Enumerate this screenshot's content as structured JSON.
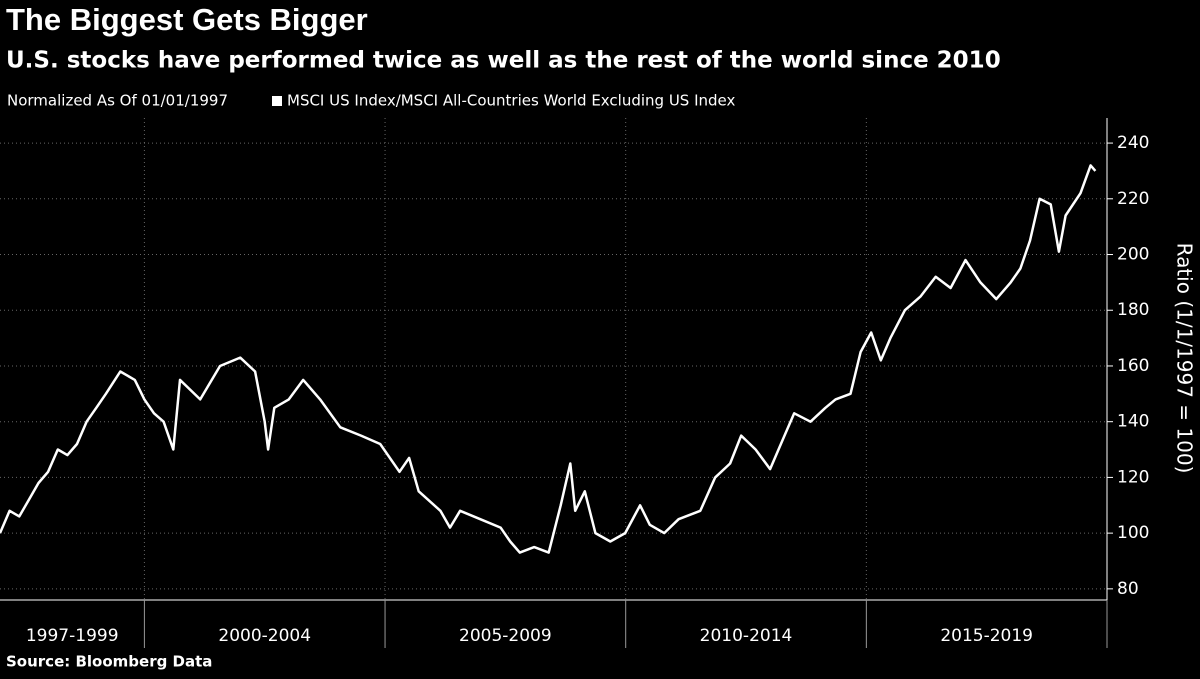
{
  "chart_data": {
    "type": "line",
    "title": "The Biggest Gets Bigger",
    "subtitle": "U.S. stocks have performed twice as well as the rest of the world since 2010",
    "note": "Normalized As Of 01/01/1997",
    "y_label": "Ratio (1/1/1997 = 100)",
    "source": "Source: Bloomberg Data",
    "xlim": [
      1997,
      2020
    ],
    "x_periods": [
      {
        "start": 1997,
        "end": 2000,
        "label": "1997-1999"
      },
      {
        "start": 2000,
        "end": 2005,
        "label": "2000-2004"
      },
      {
        "start": 2005,
        "end": 2010,
        "label": "2005-2009"
      },
      {
        "start": 2010,
        "end": 2015,
        "label": "2010-2014"
      },
      {
        "start": 2015,
        "end": 2020,
        "label": "2015-2019"
      }
    ],
    "ylim": [
      76,
      249
    ],
    "yticks": [
      80,
      100,
      120,
      140,
      160,
      180,
      200,
      220,
      240
    ],
    "y_axis_side": "right",
    "grid": true,
    "x": [
      1997.0,
      1997.2,
      1997.4,
      1997.6,
      1997.8,
      1998.0,
      1998.2,
      1998.4,
      1998.6,
      1998.8,
      1999.0,
      1999.2,
      1999.5,
      1999.8,
      2000.0,
      2000.2,
      2000.4,
      2000.6,
      2000.74,
      2001.16,
      2001.57,
      2001.99,
      2002.3,
      2002.5,
      2002.57,
      2002.7,
      2003.0,
      2003.3,
      2003.65,
      2004.07,
      2004.5,
      2004.9,
      2005.3,
      2005.5,
      2005.7,
      2006.15,
      2006.35,
      2006.56,
      2006.98,
      2007.4,
      2007.6,
      2007.8,
      2008.1,
      2008.4,
      2008.65,
      2008.85,
      2008.95,
      2009.15,
      2009.37,
      2009.68,
      2009.99,
      2010.3,
      2010.5,
      2010.8,
      2011.1,
      2011.55,
      2011.86,
      2012.17,
      2012.4,
      2012.7,
      2013.0,
      2013.3,
      2013.5,
      2013.84,
      2014.15,
      2014.36,
      2014.67,
      2014.88,
      2015.1,
      2015.3,
      2015.5,
      2015.8,
      2016.13,
      2016.44,
      2016.75,
      2017.06,
      2017.37,
      2017.7,
      2018.0,
      2018.2,
      2018.4,
      2018.6,
      2018.83,
      2019.0,
      2019.14,
      2019.45,
      2019.66,
      2019.76
    ],
    "series": [
      {
        "name": "MSCI US Index/MSCI All-Countries World Excluding US Index",
        "color": "#ffffff",
        "values": [
          100,
          108,
          106,
          112,
          118,
          122,
          130,
          128,
          132,
          140,
          145,
          150,
          158,
          155,
          148,
          143,
          140,
          130,
          155,
          148,
          160,
          163,
          158,
          140,
          130,
          145,
          148,
          155,
          148,
          138,
          135,
          132,
          122,
          127,
          115,
          108,
          102,
          108,
          105,
          102,
          97,
          93,
          95,
          93,
          110,
          125,
          108,
          115,
          100,
          97,
          100,
          110,
          103,
          100,
          105,
          108,
          120,
          125,
          135,
          130,
          123,
          135,
          143,
          140,
          145,
          148,
          150,
          165,
          172,
          162,
          170,
          180,
          185,
          192,
          188,
          198,
          190,
          184,
          190,
          195,
          205,
          220,
          218,
          201,
          214,
          222,
          232,
          230
        ]
      }
    ]
  }
}
